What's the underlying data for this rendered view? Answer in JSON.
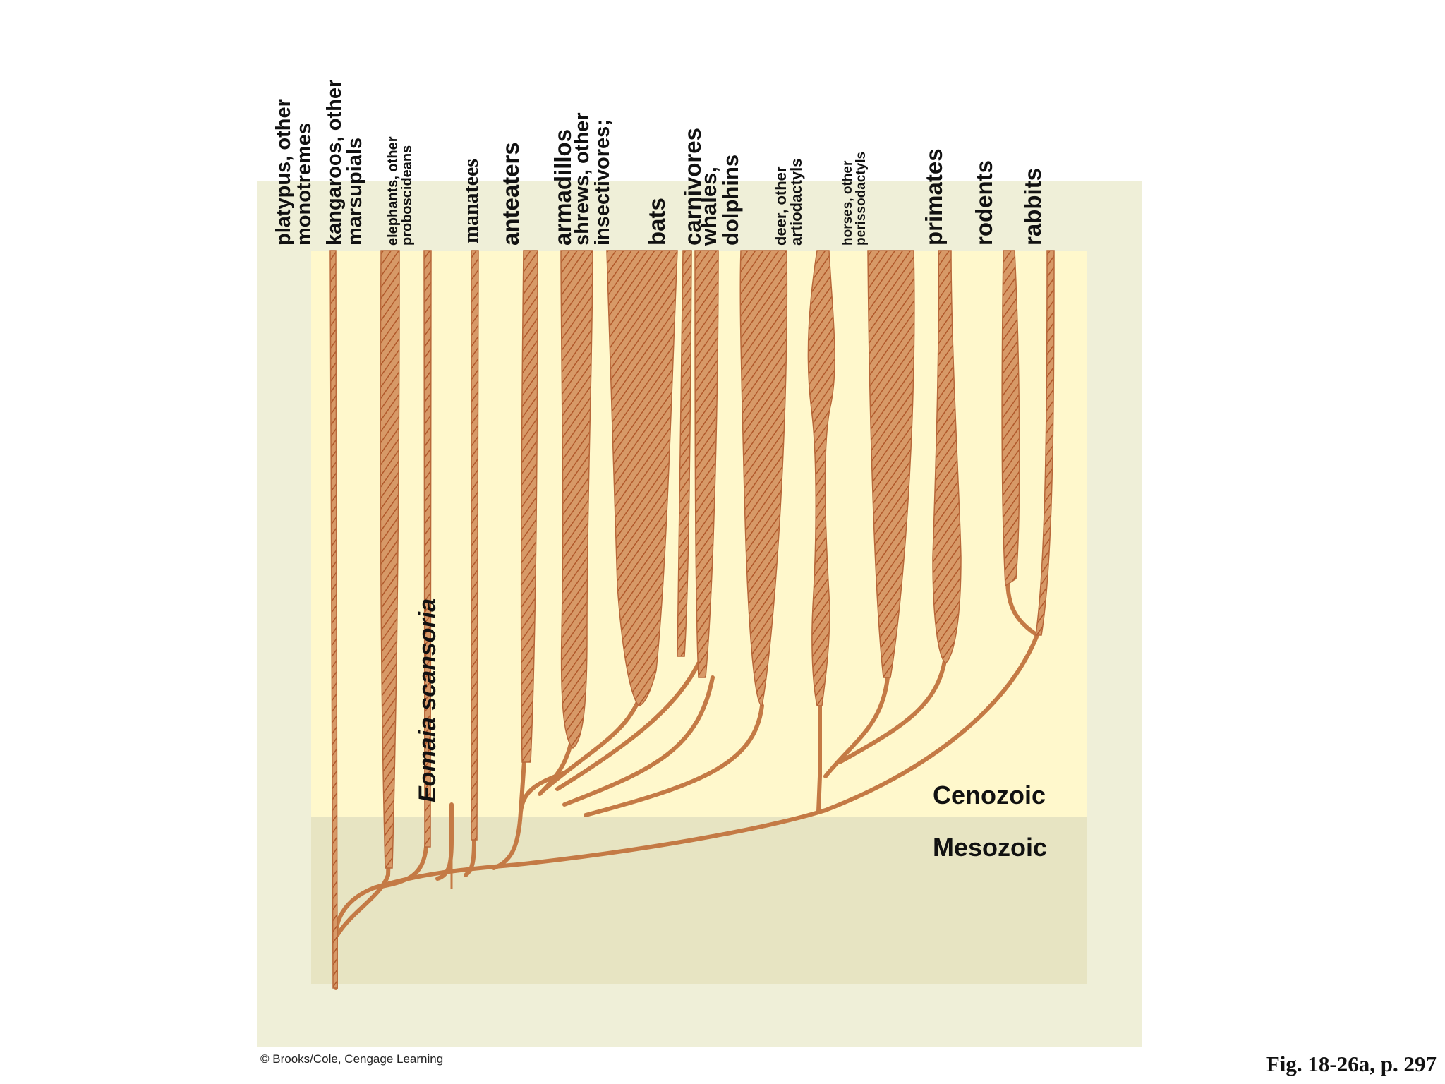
{
  "figure": {
    "taxa": [
      {
        "name": "platypus, other\nmonotremes"
      },
      {
        "name": "kangaroos, other\nmarsupials"
      },
      {
        "name": "elephants, other\nproboscideans"
      },
      {
        "name": "manatees"
      },
      {
        "name": "anteaters"
      },
      {
        "name": "armadillos"
      },
      {
        "name": "shrews, other\ninsectivores;"
      },
      {
        "name": "bats"
      },
      {
        "name": "carnivores"
      },
      {
        "name": "whales,\ndolphins"
      },
      {
        "name": "deer, other\nartiodactyls"
      },
      {
        "name": "horses, other\nperissodactyls"
      },
      {
        "name": "primates"
      },
      {
        "name": "rodents"
      },
      {
        "name": "rabbits"
      }
    ],
    "fossil_label": "Eomaia scansoria",
    "eras": {
      "cenozoic": "Cenozoic",
      "mesozoic": "Mesozoic"
    },
    "credit": "© Brooks/Cole, Cengage Learning",
    "figure_ref": "Fig. 18-26a, p. 297"
  },
  "colors": {
    "page_bg": "#ffffff",
    "outer_panel": "#efefd8",
    "cenozoic_bg": "#fff8cc",
    "mesozoic_bg": "#e7e4c2",
    "lineage_fill": "#cf8a55",
    "lineage_stroke": "#b8683a"
  }
}
